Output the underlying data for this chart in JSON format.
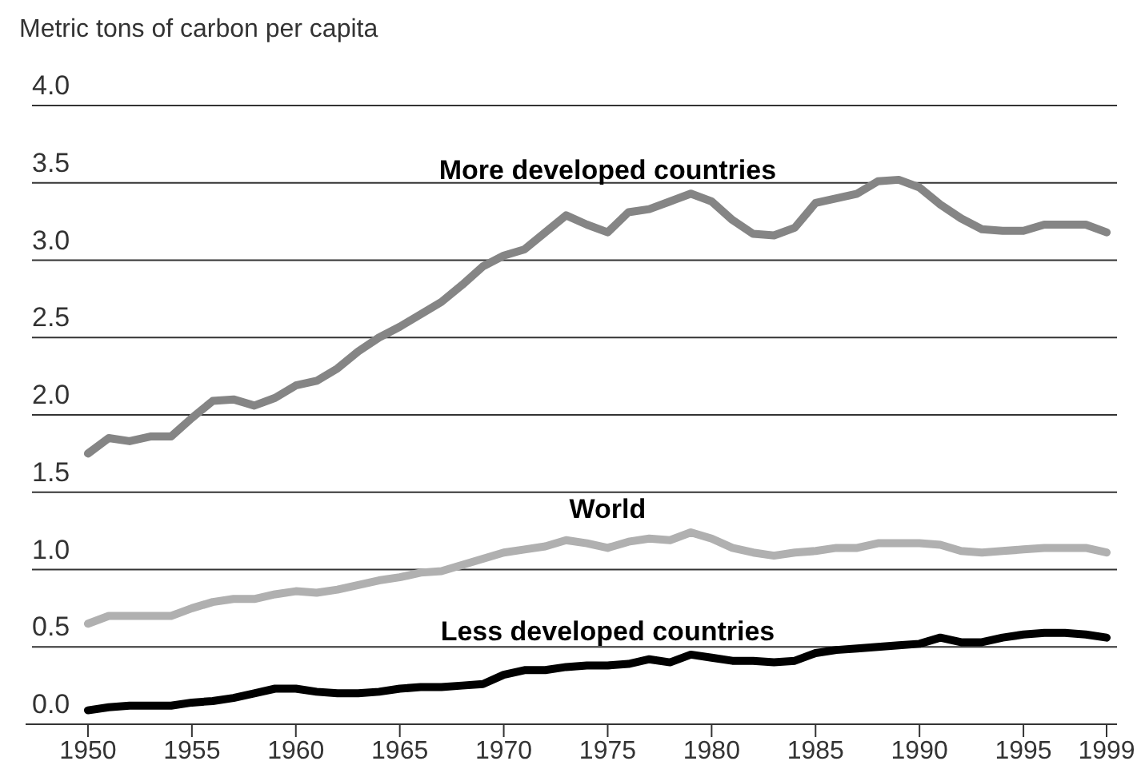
{
  "chart_data": {
    "type": "line",
    "ylabel": "Metric tons of carbon per capita",
    "x": [
      1950,
      1951,
      1952,
      1953,
      1954,
      1955,
      1956,
      1957,
      1958,
      1959,
      1960,
      1961,
      1962,
      1963,
      1964,
      1965,
      1966,
      1967,
      1968,
      1969,
      1970,
      1971,
      1972,
      1973,
      1974,
      1975,
      1976,
      1977,
      1978,
      1979,
      1980,
      1981,
      1982,
      1983,
      1984,
      1985,
      1986,
      1987,
      1988,
      1989,
      1990,
      1991,
      1992,
      1993,
      1994,
      1995,
      1996,
      1997,
      1998,
      1999
    ],
    "xlim": [
      1947,
      1999.5
    ],
    "xticks": [
      1950,
      1955,
      1960,
      1965,
      1970,
      1975,
      1980,
      1985,
      1990,
      1995,
      1999
    ],
    "ylim": [
      0,
      4
    ],
    "yticks": [
      {
        "value": 0,
        "label": "0.0"
      },
      {
        "value": 0.5,
        "label": "0.5"
      },
      {
        "value": 1,
        "label": "1.0"
      },
      {
        "value": 1.5,
        "label": "1.5"
      },
      {
        "value": 2,
        "label": "2.0"
      },
      {
        "value": 2.5,
        "label": "2.5"
      },
      {
        "value": 3,
        "label": "3.0"
      },
      {
        "value": 3.5,
        "label": "3.5"
      },
      {
        "value": 4,
        "label": "4.0"
      }
    ],
    "grid": "y",
    "legend": false,
    "marker": "none",
    "line_style": "solid",
    "series": [
      {
        "name": "More developed countries",
        "color": "#858585",
        "values": [
          1.75,
          1.85,
          1.83,
          1.86,
          1.86,
          1.98,
          2.09,
          2.1,
          2.06,
          2.11,
          2.19,
          2.22,
          2.3,
          2.41,
          2.5,
          2.57,
          2.65,
          2.73,
          2.84,
          2.96,
          3.03,
          3.07,
          3.18,
          3.29,
          3.23,
          3.18,
          3.31,
          3.33,
          3.38,
          3.43,
          3.38,
          3.26,
          3.17,
          3.16,
          3.21,
          3.37,
          3.4,
          3.43,
          3.51,
          3.52,
          3.47,
          3.36,
          3.27,
          3.2,
          3.19,
          3.19,
          3.23,
          3.23,
          3.23,
          3.18
        ]
      },
      {
        "name": "World",
        "color": "#b0b0b0",
        "values": [
          0.65,
          0.7,
          0.7,
          0.7,
          0.7,
          0.75,
          0.79,
          0.81,
          0.81,
          0.84,
          0.86,
          0.85,
          0.87,
          0.9,
          0.93,
          0.95,
          0.98,
          0.99,
          1.03,
          1.07,
          1.11,
          1.13,
          1.15,
          1.19,
          1.17,
          1.14,
          1.18,
          1.2,
          1.19,
          1.24,
          1.2,
          1.14,
          1.11,
          1.09,
          1.11,
          1.12,
          1.14,
          1.14,
          1.17,
          1.17,
          1.17,
          1.16,
          1.12,
          1.11,
          1.12,
          1.13,
          1.14,
          1.14,
          1.14,
          1.11
        ]
      },
      {
        "name": "Less developed countries",
        "color": "#000000",
        "values": [
          0.09,
          0.11,
          0.12,
          0.12,
          0.12,
          0.14,
          0.15,
          0.17,
          0.2,
          0.23,
          0.23,
          0.21,
          0.2,
          0.2,
          0.21,
          0.23,
          0.24,
          0.24,
          0.25,
          0.26,
          0.32,
          0.35,
          0.35,
          0.37,
          0.38,
          0.38,
          0.39,
          0.42,
          0.4,
          0.45,
          0.43,
          0.41,
          0.41,
          0.4,
          0.41,
          0.46,
          0.48,
          0.49,
          0.5,
          0.51,
          0.52,
          0.56,
          0.53,
          0.53,
          0.56,
          0.58,
          0.59,
          0.59,
          0.58,
          0.56
        ]
      }
    ]
  }
}
